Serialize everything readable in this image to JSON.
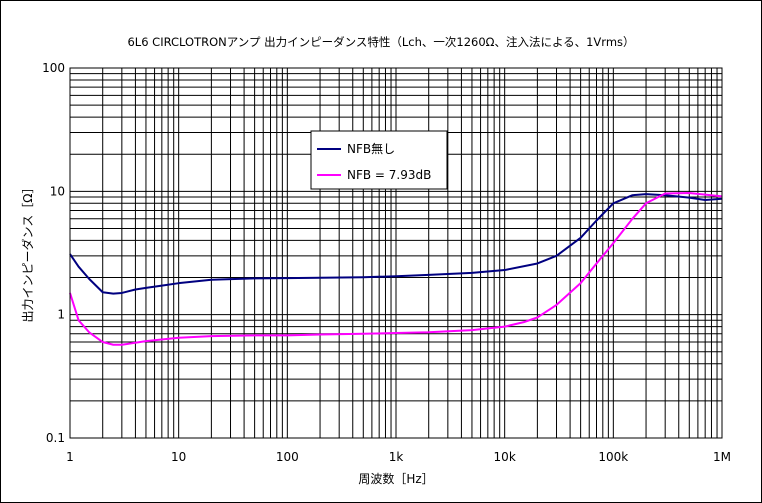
{
  "chart_data": {
    "type": "line",
    "title": "6L6 CIRCLOTRONアンプ 出力インピーダンス特性（Lch、一次1260Ω、注入法による、1Vrms）",
    "xlabel": "周波数［Hz］",
    "ylabel": "出力インピーダンス［Ω］",
    "x_scale": "log",
    "y_scale": "log",
    "xlim": [
      1,
      1000000
    ],
    "ylim": [
      0.1,
      100
    ],
    "grid": true,
    "legend_position": "upper-center",
    "x_tick_labels": [
      {
        "value": 1,
        "label": "1"
      },
      {
        "value": 10,
        "label": "10"
      },
      {
        "value": 100,
        "label": "100"
      },
      {
        "value": 1000,
        "label": "1k"
      },
      {
        "value": 10000,
        "label": "10k"
      },
      {
        "value": 100000,
        "label": "100k"
      },
      {
        "value": 1000000,
        "label": "1M"
      }
    ],
    "y_tick_labels": [
      {
        "value": 0.1,
        "label": "0.1"
      },
      {
        "value": 1,
        "label": "1"
      },
      {
        "value": 10,
        "label": "10"
      },
      {
        "value": 100,
        "label": "100"
      }
    ],
    "series": [
      {
        "name": "NFB無し",
        "color": "#000080",
        "points": [
          [
            1,
            3.1
          ],
          [
            1.2,
            2.45
          ],
          [
            1.5,
            1.95
          ],
          [
            2,
            1.52
          ],
          [
            2.5,
            1.48
          ],
          [
            3,
            1.5
          ],
          [
            4,
            1.6
          ],
          [
            5,
            1.65
          ],
          [
            7,
            1.72
          ],
          [
            10,
            1.8
          ],
          [
            20,
            1.92
          ],
          [
            50,
            1.97
          ],
          [
            100,
            1.98
          ],
          [
            200,
            1.99
          ],
          [
            500,
            2.01
          ],
          [
            1000,
            2.05
          ],
          [
            2000,
            2.1
          ],
          [
            5000,
            2.18
          ],
          [
            10000,
            2.3
          ],
          [
            20000,
            2.6
          ],
          [
            30000,
            3.0
          ],
          [
            50000,
            4.2
          ],
          [
            70000,
            5.8
          ],
          [
            100000,
            8.0
          ],
          [
            150000,
            9.3
          ],
          [
            200000,
            9.5
          ],
          [
            300000,
            9.3
          ],
          [
            500000,
            8.9
          ],
          [
            700000,
            8.5
          ],
          [
            1000000,
            8.7
          ]
        ]
      },
      {
        "name": "NFB = 7.93dB",
        "color": "#FF00FF",
        "points": [
          [
            1,
            1.5
          ],
          [
            1.2,
            0.9
          ],
          [
            1.5,
            0.72
          ],
          [
            2,
            0.6
          ],
          [
            2.5,
            0.57
          ],
          [
            3,
            0.57
          ],
          [
            5,
            0.61
          ],
          [
            10,
            0.65
          ],
          [
            20,
            0.67
          ],
          [
            50,
            0.68
          ],
          [
            100,
            0.68
          ],
          [
            200,
            0.69
          ],
          [
            500,
            0.7
          ],
          [
            1000,
            0.71
          ],
          [
            2000,
            0.72
          ],
          [
            5000,
            0.75
          ],
          [
            10000,
            0.8
          ],
          [
            15000,
            0.87
          ],
          [
            20000,
            0.95
          ],
          [
            30000,
            1.2
          ],
          [
            50000,
            1.8
          ],
          [
            70000,
            2.6
          ],
          [
            100000,
            3.8
          ],
          [
            150000,
            6.0
          ],
          [
            200000,
            8.0
          ],
          [
            300000,
            9.6
          ],
          [
            500000,
            9.7
          ],
          [
            700000,
            9.4
          ],
          [
            1000000,
            9.1
          ]
        ]
      }
    ]
  }
}
